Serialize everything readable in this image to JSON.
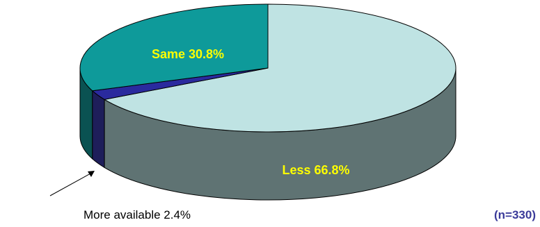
{
  "chart_data": {
    "type": "pie",
    "title": "",
    "style": "3d",
    "slices": [
      {
        "label": "Less",
        "value": 66.8,
        "display": "Less 66.8%",
        "top_color": "#bfe3e3",
        "side_color": "#5f7373"
      },
      {
        "label": "More available",
        "value": 2.4,
        "display": "More available 2.4%",
        "top_color": "#2a2a9e",
        "side_color": "#1e1e5a"
      },
      {
        "label": "Same",
        "value": 30.8,
        "display": "Same 30.8%",
        "top_color": "#0e9a9a",
        "side_color": "#0a5252"
      }
    ],
    "label_color": "#ffff00",
    "annotation": "(n=330)",
    "annotation_color": "#3b3b9a"
  }
}
